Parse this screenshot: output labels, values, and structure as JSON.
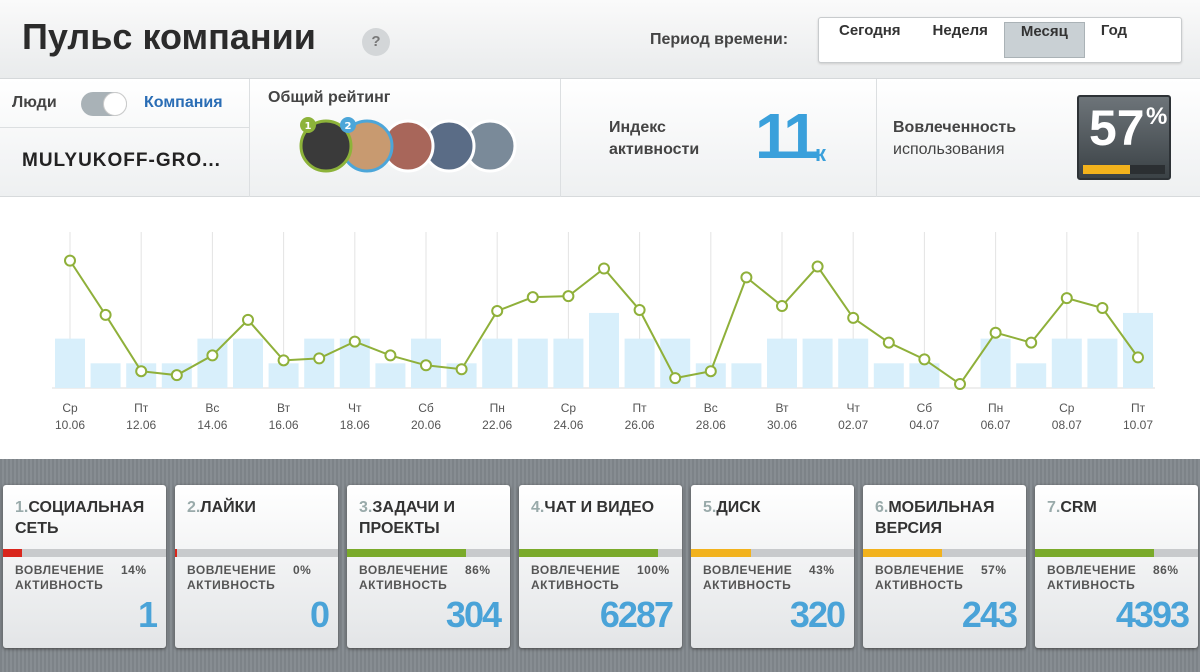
{
  "header": {
    "title": "Пульс компании",
    "help": "?",
    "period_label": "Период времени:",
    "periods": [
      "Сегодня",
      "Неделя",
      "Месяц",
      "Год"
    ],
    "selected_period": 2
  },
  "scope": {
    "left": "Люди",
    "right": "Компания",
    "company": "MULYUKOFF-GRO..."
  },
  "rating": {
    "title": "Общий рейтинг",
    "badges": [
      "1",
      "2"
    ]
  },
  "activity_index": {
    "label_1": "Индекс",
    "label_2": "активности",
    "value": "11",
    "unit": "к"
  },
  "engagement": {
    "label_1": "Вовлеченность",
    "label_2": "использования",
    "value": 57,
    "unit": "%",
    "bar_color": "#f2b21c"
  },
  "chart_data": {
    "type": "bar-line",
    "categories": [
      "10.06",
      null,
      "12.06",
      null,
      "14.06",
      null,
      "16.06",
      null,
      "18.06",
      null,
      "20.06",
      null,
      "22.06",
      null,
      "24.06",
      null,
      "26.06",
      null,
      "28.06",
      null,
      "30.06",
      null,
      "02.07",
      null,
      "04.07",
      null,
      "06.07",
      null,
      "08.07",
      null,
      "10.07"
    ],
    "weekdays": [
      "Ср",
      null,
      "Пт",
      null,
      "Вс",
      null,
      "Вт",
      null,
      "Чт",
      null,
      "Сб",
      null,
      "Пн",
      null,
      "Ср",
      null,
      "Пт",
      null,
      "Вс",
      null,
      "Вт",
      null,
      "Чт",
      null,
      "Сб",
      null,
      "Пн",
      null,
      "Ср",
      null,
      "Пт"
    ],
    "series": [
      {
        "type": "bar",
        "color": "#d8effb",
        "values": [
          50,
          25,
          25,
          25,
          50,
          50,
          25,
          50,
          50,
          25,
          50,
          25,
          50,
          50,
          50,
          76,
          50,
          50,
          25,
          25,
          50,
          50,
          50,
          25,
          25,
          0,
          50,
          25,
          50,
          50,
          76
        ]
      },
      {
        "type": "line",
        "color": "#8fb03a",
        "values": [
          129,
          74,
          17,
          13,
          33,
          69,
          28,
          30,
          47,
          33,
          23,
          19,
          78,
          92,
          93,
          121,
          79,
          10,
          17,
          112,
          83,
          123,
          71,
          46,
          29,
          4,
          56,
          46,
          91,
          81,
          31
        ]
      }
    ],
    "ylim": [
      0,
      160
    ],
    "grid": true
  },
  "cards": [
    {
      "index": "1.",
      "name": "СОЦИАЛЬНАЯ СЕТЬ",
      "engagement_title": "ВОВЛЕЧЕНИЕ",
      "engagement": 14,
      "engagement_label": "14%",
      "activity_title": "АКТИВНОСТЬ",
      "activity": 1,
      "color": "#d9261c"
    },
    {
      "index": "2.",
      "name": "ЛАЙКИ",
      "engagement_title": "ВОВЛЕЧЕНИЕ",
      "engagement": 0,
      "engagement_label": "0%",
      "activity_title": "АКТИВНОСТЬ",
      "activity": 0,
      "color": "#d9261c"
    },
    {
      "index": "3.",
      "name": "ЗАДАЧИ И ПРОЕКТЫ",
      "engagement_title": "ВОВЛЕЧЕНИЕ",
      "engagement": 86,
      "engagement_label": "86%",
      "activity_title": "АКТИВНОСТЬ",
      "activity": 304,
      "color": "#7aaa2a"
    },
    {
      "index": "4.",
      "name": "ЧАТ И ВИДЕО",
      "engagement_title": "ВОВЛЕЧЕНИЕ",
      "engagement": 100,
      "engagement_label": "100%",
      "activity_title": "АКТИВНОСТЬ",
      "activity": 6287,
      "color": "#7aaa2a"
    },
    {
      "index": "5.",
      "name": "ДИСК",
      "engagement_title": "ВОВЛЕЧЕНИЕ",
      "engagement": 43,
      "engagement_label": "43%",
      "activity_title": "АКТИВНОСТЬ",
      "activity": 320,
      "color": "#f2b21c"
    },
    {
      "index": "6.",
      "name": "МОБИЛЬНАЯ ВЕРСИЯ",
      "engagement_title": "ВОВЛЕЧЕНИЕ",
      "engagement": 57,
      "engagement_label": "57%",
      "activity_title": "АКТИВНОСТЬ",
      "activity": 243,
      "color": "#f2b21c"
    },
    {
      "index": "7.",
      "name": "CRM",
      "engagement_title": "ВОВЛЕЧЕНИЕ",
      "engagement": 86,
      "engagement_label": "86%",
      "activity_title": "АКТИВНОСТЬ",
      "activity": 4393,
      "color": "#7aaa2a"
    }
  ]
}
